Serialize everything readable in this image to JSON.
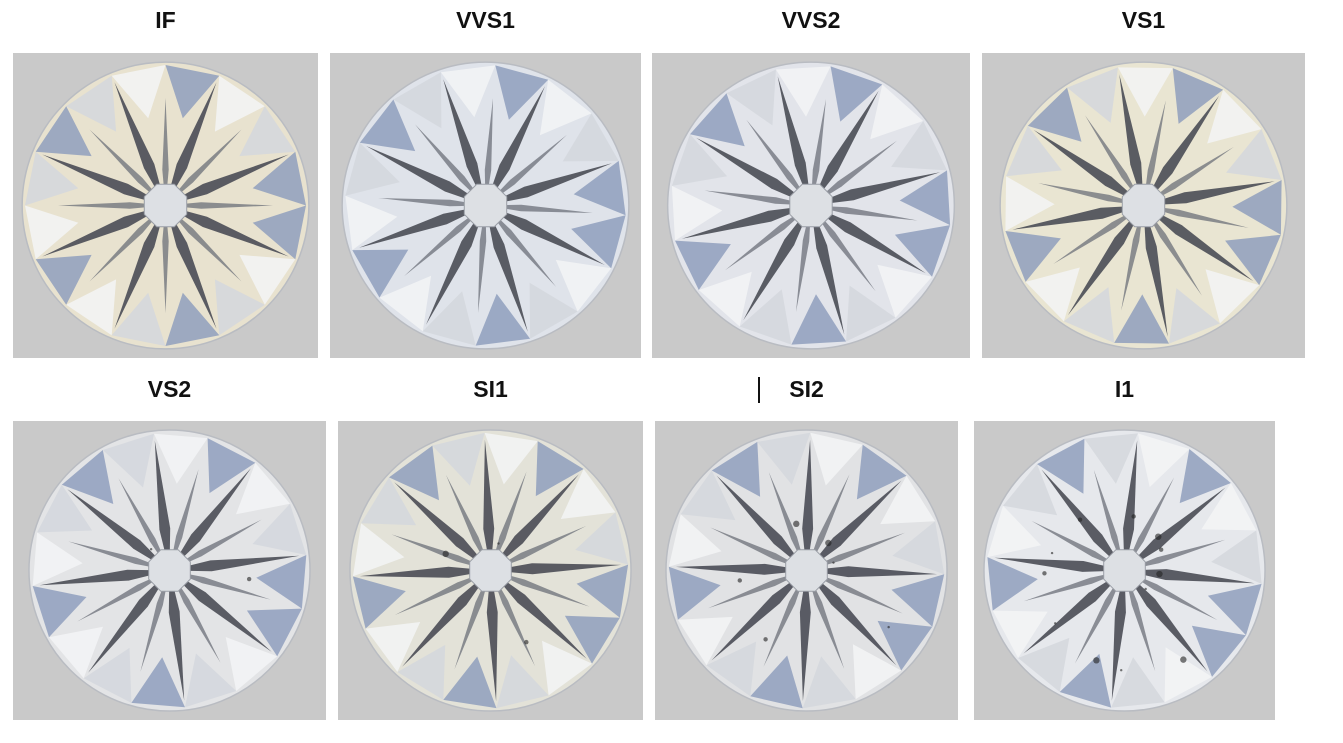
{
  "grades": [
    {
      "label": "IF",
      "tint": "#e8e2cf"
    },
    {
      "label": "VVS1",
      "tint": "#dfe3ea"
    },
    {
      "label": "VVS2",
      "tint": "#e2e4ea"
    },
    {
      "label": "VS1",
      "tint": "#e9e5d2"
    },
    {
      "label": "VS2",
      "tint": "#e3e4e6"
    },
    {
      "label": "SI1",
      "tint": "#e3e2d8"
    },
    {
      "label": "SI2",
      "tint": "#e1e2e4"
    },
    {
      "label": "I1",
      "tint": "#e6e8ec"
    }
  ],
  "colors": {
    "panel_background": "#c9c9c9",
    "facet_dark": "#4a4d55",
    "facet_blue": "#8f9fbd"
  }
}
